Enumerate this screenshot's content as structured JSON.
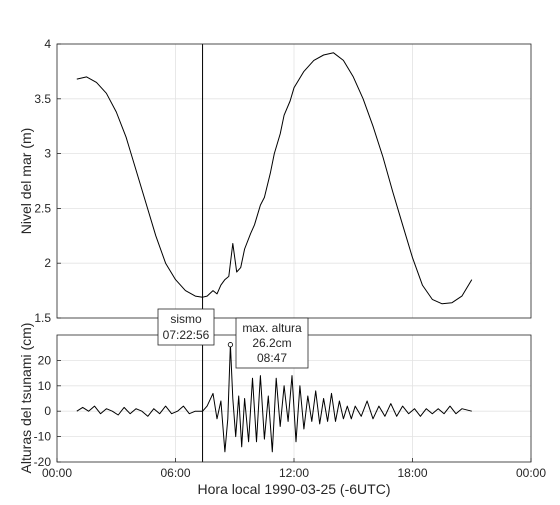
{
  "chart_data": [
    {
      "type": "line",
      "name": "sea-level",
      "xlim_hours": [
        0,
        24
      ],
      "ylim": [
        1.5,
        4
      ],
      "ylabel": "Nivel del mar (m)",
      "yticks": [
        "1.5",
        "2",
        "2.5",
        "3",
        "3.5",
        "4"
      ],
      "ytick_values": [
        1.5,
        2,
        2.5,
        3,
        3.5,
        4
      ],
      "grid": true,
      "series": [
        {
          "color": "#000000",
          "x_hours": [
            1.0,
            1.5,
            2.0,
            2.5,
            3.0,
            3.5,
            4.0,
            4.5,
            5.0,
            5.5,
            6.0,
            6.5,
            7.0,
            7.37,
            7.6,
            7.9,
            8.1,
            8.3,
            8.5,
            8.7,
            8.9,
            9.1,
            9.3,
            9.5,
            9.8,
            10.0,
            10.3,
            10.5,
            10.8,
            11.0,
            11.3,
            11.5,
            11.8,
            12.0,
            12.5,
            13.0,
            13.5,
            14.0,
            14.5,
            15.0,
            15.5,
            16.0,
            16.5,
            17.0,
            17.5,
            18.0,
            18.5,
            19.0,
            19.5,
            20.0,
            20.5,
            21.0
          ],
          "y": [
            3.68,
            3.7,
            3.65,
            3.55,
            3.38,
            3.15,
            2.85,
            2.55,
            2.25,
            2.0,
            1.85,
            1.75,
            1.7,
            1.69,
            1.7,
            1.75,
            1.72,
            1.8,
            1.85,
            1.88,
            2.18,
            1.92,
            1.96,
            2.13,
            2.27,
            2.35,
            2.53,
            2.6,
            2.82,
            3.0,
            3.18,
            3.35,
            3.48,
            3.6,
            3.75,
            3.85,
            3.9,
            3.92,
            3.85,
            3.7,
            3.5,
            3.25,
            2.97,
            2.65,
            2.35,
            2.05,
            1.8,
            1.67,
            1.63,
            1.64,
            1.7,
            1.85
          ]
        }
      ]
    },
    {
      "type": "line",
      "name": "tsunami",
      "xlim_hours": [
        0,
        24
      ],
      "ylim": [
        -20,
        30
      ],
      "ylabel": "Alturas del tsunami (cm)",
      "yticks": [
        "-20",
        "-10",
        "0",
        "10",
        "20"
      ],
      "ytick_values": [
        -20,
        -10,
        0,
        10,
        20
      ],
      "xlabel": "Hora local 1990-03-25 (-6UTC)",
      "xticks": [
        "00:00",
        "06:00",
        "12:00",
        "18:00",
        "00:00"
      ],
      "xtick_values": [
        0,
        6,
        12,
        18,
        24
      ],
      "grid": true,
      "series": [
        {
          "color": "#000000",
          "x_hours": [
            1.0,
            1.3,
            1.6,
            1.9,
            2.2,
            2.5,
            2.8,
            3.1,
            3.4,
            3.7,
            4.0,
            4.3,
            4.6,
            4.9,
            5.2,
            5.5,
            5.8,
            6.1,
            6.4,
            6.7,
            7.0,
            7.37,
            7.6,
            7.9,
            8.1,
            8.3,
            8.5,
            8.65,
            8.78,
            8.9,
            9.05,
            9.2,
            9.35,
            9.5,
            9.7,
            9.9,
            10.1,
            10.3,
            10.5,
            10.7,
            10.9,
            11.1,
            11.3,
            11.5,
            11.7,
            11.9,
            12.1,
            12.3,
            12.5,
            12.7,
            12.9,
            13.1,
            13.3,
            13.5,
            13.7,
            13.9,
            14.1,
            14.3,
            14.5,
            14.7,
            14.9,
            15.1,
            15.4,
            15.7,
            16.0,
            16.3,
            16.6,
            16.9,
            17.2,
            17.5,
            17.8,
            18.1,
            18.4,
            18.7,
            19.0,
            19.3,
            19.6,
            19.9,
            20.2,
            20.5,
            21.0
          ],
          "y": [
            0,
            1.5,
            0,
            2,
            -1,
            1,
            0,
            -1.5,
            1.5,
            -1,
            1,
            0,
            -2,
            1,
            -1,
            2,
            -1,
            0,
            2,
            -1,
            0,
            0,
            2,
            7,
            -3,
            4,
            -16,
            -3,
            26.2,
            5,
            -10,
            6,
            -14,
            5,
            -12,
            13,
            -12,
            14,
            -11,
            6,
            -16,
            13,
            -6,
            10,
            -4,
            14,
            -12,
            10,
            -7,
            6,
            -4,
            8,
            -5,
            5,
            -4,
            7,
            -4,
            4,
            -3,
            2,
            -3,
            2,
            -2,
            4,
            -3,
            2,
            -2,
            3,
            -2,
            2,
            -1,
            1,
            -2,
            1,
            -1,
            1,
            -1,
            2,
            -1,
            1,
            0
          ]
        }
      ],
      "peak_marker": {
        "x_hours": 8.78,
        "y": 26.2
      }
    }
  ],
  "annotations": {
    "quake_time_hours": 7.37,
    "quake": {
      "line1": "sismo",
      "line2": "07:22:56"
    },
    "max": {
      "line1": "max. altura",
      "line2": "26.2cm",
      "line3": "08:47"
    }
  }
}
